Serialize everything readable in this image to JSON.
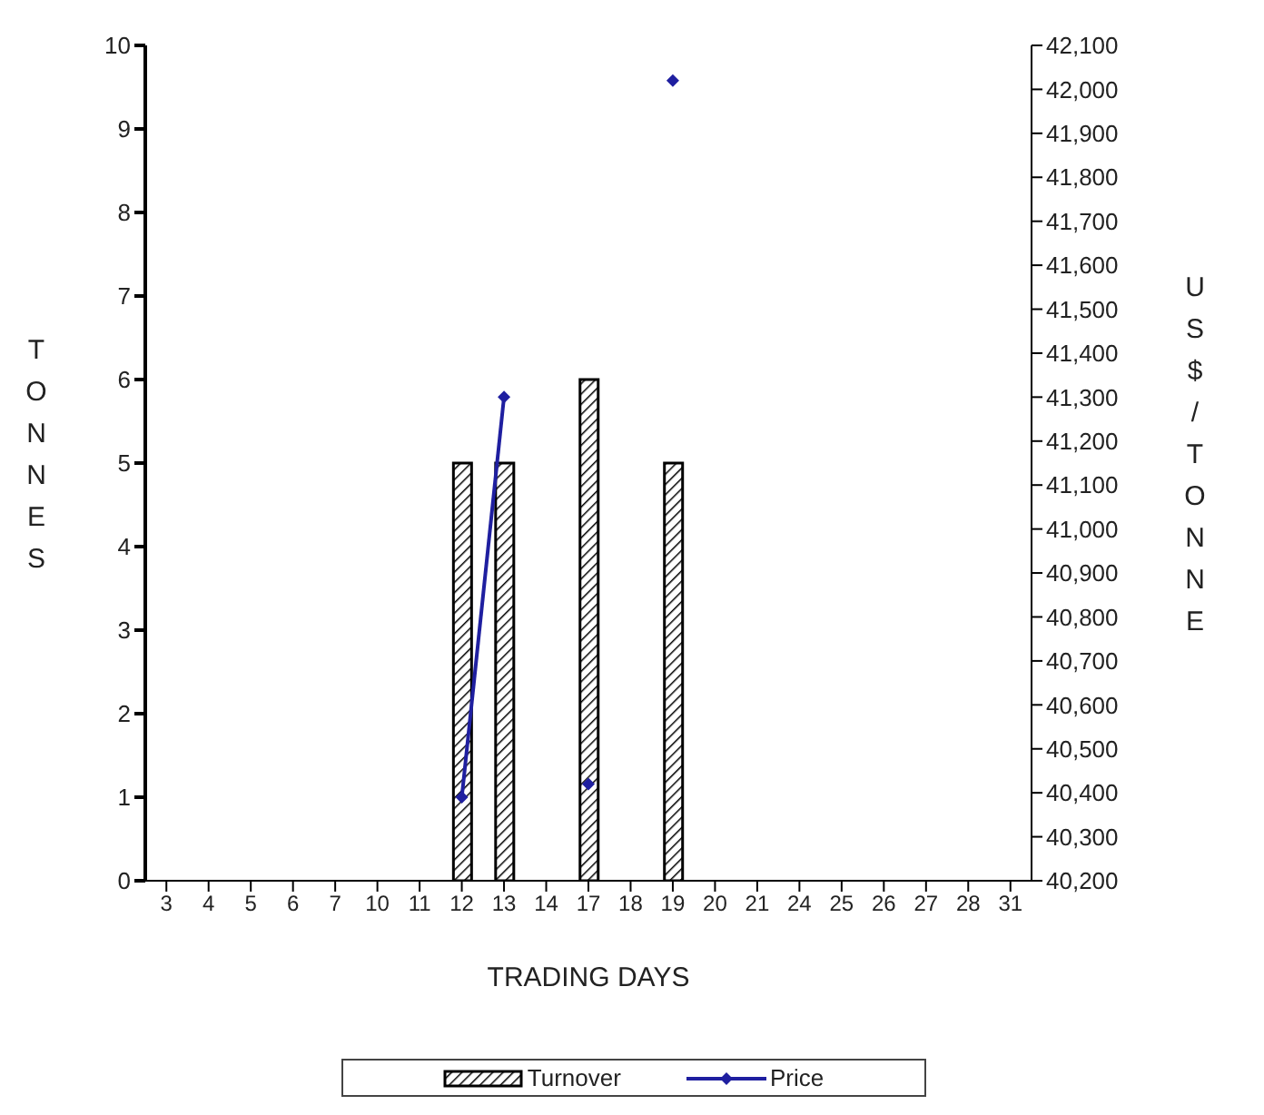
{
  "chart_data": {
    "type": "bar",
    "xlabel": "TRADING DAYS",
    "ylabel": "TONNES",
    "y2label": "US$/TONNE",
    "categories": [
      "3",
      "4",
      "5",
      "6",
      "7",
      "10",
      "11",
      "12",
      "13",
      "14",
      "17",
      "18",
      "19",
      "20",
      "21",
      "24",
      "25",
      "26",
      "27",
      "28",
      "31"
    ],
    "series": [
      {
        "name": "Turnover",
        "color": "#000000",
        "values": [
          null,
          null,
          null,
          null,
          null,
          null,
          null,
          5,
          5,
          null,
          6,
          null,
          5,
          null,
          null,
          null,
          null,
          null,
          null,
          null,
          null
        ]
      },
      {
        "name": "Price",
        "type": "line",
        "axis": "y2",
        "color": "#1f1fa0",
        "values": [
          null,
          null,
          null,
          null,
          null,
          null,
          null,
          40390,
          41300,
          null,
          40420,
          null,
          42020,
          null,
          null,
          null,
          null,
          null,
          null,
          null,
          null
        ]
      }
    ],
    "ylim": [
      0,
      10
    ],
    "yticks": [
      0,
      1,
      2,
      3,
      4,
      5,
      6,
      7,
      8,
      9,
      10
    ],
    "y2lim": [
      40200,
      42100
    ],
    "y2ticks": [
      {
        "value": 40200,
        "label": "40,200"
      },
      {
        "value": 40300,
        "label": "40,300"
      },
      {
        "value": 40400,
        "label": "40,400"
      },
      {
        "value": 40500,
        "label": "40,500"
      },
      {
        "value": 40600,
        "label": "40,600"
      },
      {
        "value": 40700,
        "label": "40,700"
      },
      {
        "value": 40800,
        "label": "40,800"
      },
      {
        "value": 40900,
        "label": "40,900"
      },
      {
        "value": 41000,
        "label": "41,000"
      },
      {
        "value": 41100,
        "label": "41,100"
      },
      {
        "value": 41200,
        "label": "41,200"
      },
      {
        "value": 41300,
        "label": "41,300"
      },
      {
        "value": 41400,
        "label": "41,400"
      },
      {
        "value": 41500,
        "label": "41,500"
      },
      {
        "value": 41600,
        "label": "41,600"
      },
      {
        "value": 41700,
        "label": "41,700"
      },
      {
        "value": 41800,
        "label": "41,800"
      },
      {
        "value": 41900,
        "label": "41,900"
      },
      {
        "value": 42000,
        "label": "42,000"
      },
      {
        "value": 42100,
        "label": "42,100"
      }
    ],
    "legend": "bottom",
    "marker": "diamond",
    "line_style": "solid"
  }
}
